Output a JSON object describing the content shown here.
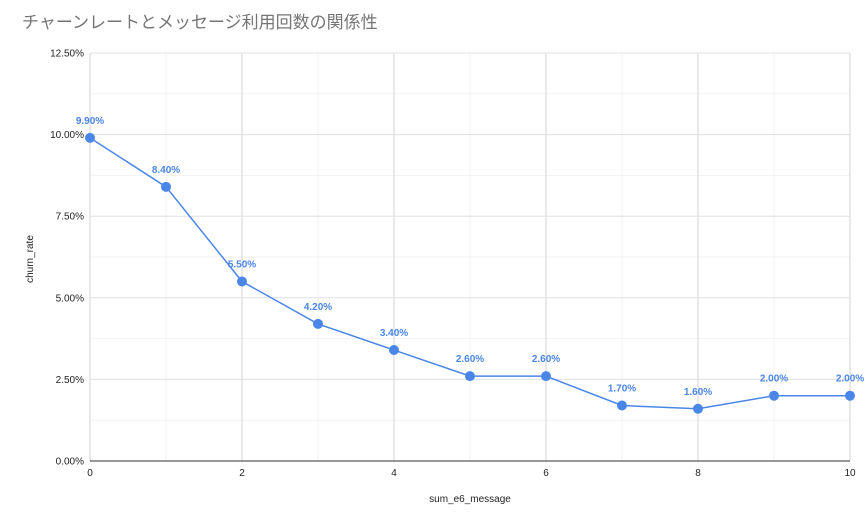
{
  "chart_data": {
    "type": "line",
    "title": "チャーンレートとメッセージ利用回数の関係性",
    "xlabel": "sum_e6_message",
    "ylabel": "churn_rate",
    "x": [
      0,
      1,
      2,
      3,
      4,
      5,
      6,
      7,
      8,
      9,
      10
    ],
    "series": [
      {
        "values": [
          9.9,
          8.4,
          5.5,
          4.2,
          3.4,
          2.6,
          2.6,
          1.7,
          1.6,
          2.0,
          2.0
        ],
        "labels": [
          "9.90%",
          "8.40%",
          "5.50%",
          "4.20%",
          "3.40%",
          "2.60%",
          "2.60%",
          "1.70%",
          "1.60%",
          "2.00%",
          "2.00%"
        ]
      }
    ],
    "xlim": [
      0,
      10
    ],
    "ylim": [
      0,
      12.5
    ],
    "x_ticks": [
      "0",
      "2",
      "4",
      "6",
      "8",
      "10"
    ],
    "x_tick_values": [
      0,
      2,
      4,
      6,
      8,
      10
    ],
    "y_ticks": [
      "0.00%",
      "2.50%",
      "5.00%",
      "7.50%",
      "10.00%",
      "12.50%"
    ],
    "y_tick_values": [
      0,
      2.5,
      5,
      7.5,
      10,
      12.5
    ],
    "grid": true,
    "legend": "none",
    "colors": {
      "series": "#4a86e8",
      "grid_major": "#e0e0e0",
      "grid_minor": "#f3f3f3"
    }
  }
}
